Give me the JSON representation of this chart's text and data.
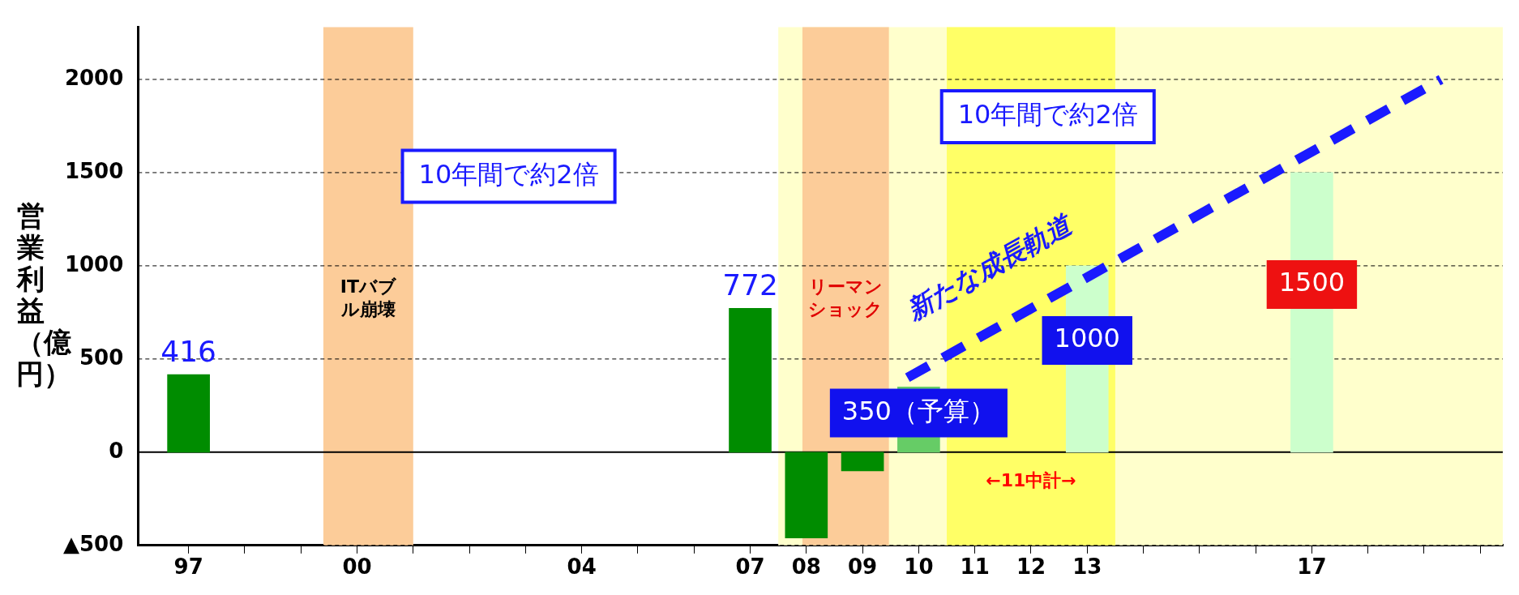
{
  "chart_data": {
    "type": "bar",
    "ylabel": "営業利益（億円）",
    "x": [
      1997,
      2007,
      2008,
      2009,
      2010,
      2013,
      2017
    ],
    "xlim": [
      1996.1,
      2020.4
    ],
    "xticks": [
      {
        "value": 1997,
        "label": "97"
      },
      {
        "value": 1998,
        "label": null
      },
      {
        "value": 1999,
        "label": null
      },
      {
        "value": 2000,
        "label": "00"
      },
      {
        "value": 2001,
        "label": null
      },
      {
        "value": 2002,
        "label": null
      },
      {
        "value": 2003,
        "label": null
      },
      {
        "value": 2004,
        "label": "04"
      },
      {
        "value": 2005,
        "label": null
      },
      {
        "value": 2006,
        "label": null
      },
      {
        "value": 2007,
        "label": "07"
      },
      {
        "value": 2008,
        "label": "08"
      },
      {
        "value": 2009,
        "label": "09"
      },
      {
        "value": 2010,
        "label": "10"
      },
      {
        "value": 2011,
        "label": "11"
      },
      {
        "value": 2012,
        "label": "12"
      },
      {
        "value": 2013,
        "label": "13"
      },
      {
        "value": 2014,
        "label": null
      },
      {
        "value": 2015,
        "label": null
      },
      {
        "value": 2016,
        "label": null
      },
      {
        "value": 2017,
        "label": "17"
      },
      {
        "value": 2018,
        "label": null
      },
      {
        "value": 2019,
        "label": null
      },
      {
        "value": 2020,
        "label": null
      }
    ],
    "ylim": [
      -500,
      2280
    ],
    "yticks": [
      {
        "value": -500,
        "label": "▲500"
      },
      0,
      500,
      1000,
      1500,
      2000
    ],
    "grid": "y",
    "legend": false,
    "series": [
      {
        "colors": [
          "#008c00",
          "#008c00",
          "#008c00",
          "#008c00",
          "#66cc66",
          "#ccffcc",
          "#ccffcc"
        ],
        "values": [
          416,
          772,
          -460,
          -100,
          350,
          1000,
          1500
        ],
        "value_labels": [
          "416",
          "772",
          null,
          null,
          "350（予算）",
          "1000",
          "1500"
        ]
      },
      {
        "type": "line",
        "name": "新たな成長軌道",
        "color": "#1a1aff",
        "x": [
          2009.8,
          2019.3
        ],
        "values": [
          400,
          2000
        ],
        "line_style": "dashed"
      }
    ],
    "bands": [
      {
        "axis": "x",
        "from": 2007.5,
        "to": 2020.4,
        "color": "#ffffcc"
      },
      {
        "axis": "x",
        "from": 2010.5,
        "to": 2013.5,
        "color": "#ffff66",
        "label": "←11中計→"
      },
      {
        "axis": "x",
        "from": 1999.4,
        "to": 2001.0,
        "color": "#fccc99",
        "label": "ITバブル崩壊"
      },
      {
        "axis": "x",
        "from": 2007.93,
        "to": 2009.47,
        "color": "#fccc99",
        "label": "リーマンショック"
      }
    ],
    "annotations": [
      "10年間で約2倍",
      "10年間で約2倍"
    ]
  }
}
